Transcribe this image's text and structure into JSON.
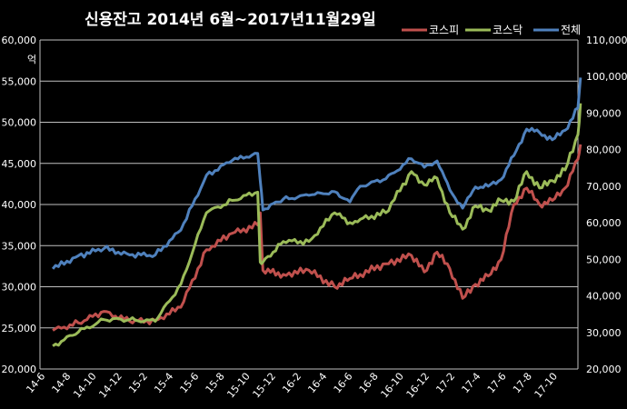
{
  "chart_data": {
    "type": "line",
    "title": "신용잔고 2014년 6월~2017년11월29일",
    "left_axis": {
      "unit": "억",
      "ylim": [
        20000,
        60000
      ],
      "ticks": [
        "60,000",
        "55,000",
        "50,000",
        "45,000",
        "40,000",
        "35,000",
        "30,000",
        "25,000",
        "20,000"
      ]
    },
    "right_axis": {
      "ylim": [
        20000,
        110000
      ],
      "ticks": [
        "110,000",
        "100,000",
        "90,000",
        "80,000",
        "70,000",
        "60,000",
        "50,000",
        "40,000",
        "30,000",
        "20,000"
      ]
    },
    "categories": [
      "14-6",
      "14-8",
      "14-10",
      "14-12",
      "15-2",
      "15-4",
      "15-6",
      "15-8",
      "15-10",
      "15-12",
      "16-2",
      "16-4",
      "16-6",
      "16-8",
      "16-10",
      "16-12",
      "17-2",
      "17-4",
      "17-6",
      "17-8",
      "17-10"
    ],
    "grid": true,
    "legend_position": "top-right",
    "series": [
      {
        "name": "코스피",
        "axis": "left",
        "color": "#c0504d",
        "x": [
          0,
          1,
          2,
          3,
          4,
          5,
          6,
          7,
          8,
          8.1,
          8.2,
          9,
          10,
          11,
          11.6,
          12,
          13,
          14,
          14.5,
          15,
          15.5,
          16,
          16.5,
          17,
          17.5,
          18,
          18.5,
          19,
          19.5,
          20,
          20.5,
          20.6
        ],
        "values": [
          24700,
          25600,
          27000,
          25800,
          25900,
          27500,
          34500,
          36500,
          37500,
          39000,
          32000,
          31500,
          32000,
          30000,
          31000,
          31500,
          32800,
          33800,
          31800,
          34200,
          32200,
          28600,
          30300,
          31300,
          33300,
          40000,
          42000,
          40000,
          40500,
          42000,
          45500,
          47300
        ]
      },
      {
        "name": "코스닥",
        "axis": "left",
        "color": "#9bbb59",
        "x": [
          0,
          1,
          2,
          3,
          4,
          5,
          6,
          7,
          8,
          8.1,
          8.2,
          9,
          10,
          11,
          11.6,
          12,
          13,
          14,
          14.5,
          15,
          15.5,
          16,
          16.5,
          17,
          17.5,
          18,
          18.5,
          19,
          19.5,
          20,
          20.5,
          20.6
        ],
        "values": [
          22800,
          24500,
          26000,
          26000,
          25800,
          30300,
          39000,
          40500,
          41500,
          33000,
          33000,
          35500,
          35500,
          39000,
          37800,
          38200,
          39000,
          44000,
          42400,
          43200,
          39000,
          37000,
          39800,
          39300,
          40500,
          40400,
          44000,
          42000,
          42900,
          44200,
          48500,
          52300
        ]
      },
      {
        "name": "전체",
        "axis": "right",
        "color": "#4f81bd",
        "x": [
          0,
          1,
          2,
          3,
          4,
          5,
          6,
          7,
          8,
          8.1,
          8.2,
          9,
          10,
          11,
          11.6,
          12,
          13,
          14,
          14.5,
          15,
          15.5,
          16,
          16.5,
          17,
          17.5,
          18,
          18.5,
          19,
          19.5,
          20,
          20.5,
          20.6
        ],
        "values": [
          47400,
          51000,
          53000,
          51200,
          51200,
          58000,
          73000,
          77000,
          79000,
          71500,
          63500,
          66500,
          67500,
          68500,
          65700,
          70000,
          72000,
          77500,
          75200,
          76900,
          69000,
          64000,
          69800,
          70000,
          71800,
          78400,
          85600,
          84700,
          82700,
          85300,
          91400,
          99700
        ]
      }
    ]
  }
}
